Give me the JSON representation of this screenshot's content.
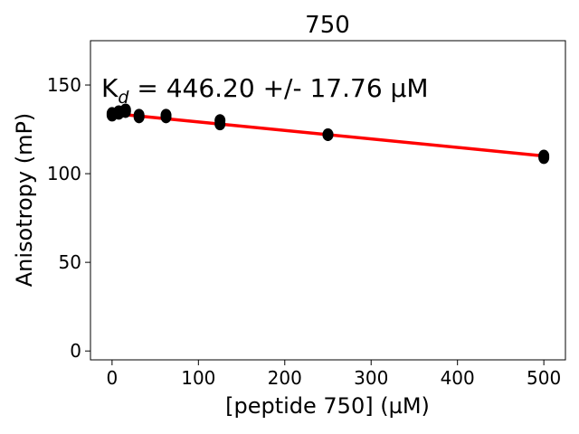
{
  "chart_data": {
    "type": "scatter",
    "title": "750",
    "xlabel": "[peptide 750] (µM)",
    "ylabel": "Anisotropy (mP)",
    "xlim": [
      -25,
      525
    ],
    "ylim": [
      -5,
      175
    ],
    "xticks": [
      0,
      100,
      200,
      300,
      400,
      500
    ],
    "yticks": [
      0,
      50,
      100,
      150
    ],
    "grid": false,
    "annotation": {
      "prefix": "K",
      "subscript": "d",
      "text": " = 446.20 +/- 17.76 µM"
    },
    "series": [
      {
        "kind": "points",
        "color": "#000000",
        "points": [
          [
            0,
            133
          ],
          [
            0,
            134
          ],
          [
            7.8,
            134
          ],
          [
            7.8,
            135
          ],
          [
            15.6,
            136
          ],
          [
            15.6,
            135
          ],
          [
            31.25,
            132
          ],
          [
            31.25,
            133
          ],
          [
            62.5,
            132
          ],
          [
            62.5,
            133
          ],
          [
            125,
            128
          ],
          [
            125,
            130
          ],
          [
            250,
            122
          ],
          [
            250,
            122
          ],
          [
            500,
            109
          ],
          [
            500,
            110
          ]
        ]
      },
      {
        "kind": "fit",
        "color": "#ff0000",
        "x": [
          0,
          500
        ],
        "y": [
          134,
          110
        ]
      }
    ]
  }
}
